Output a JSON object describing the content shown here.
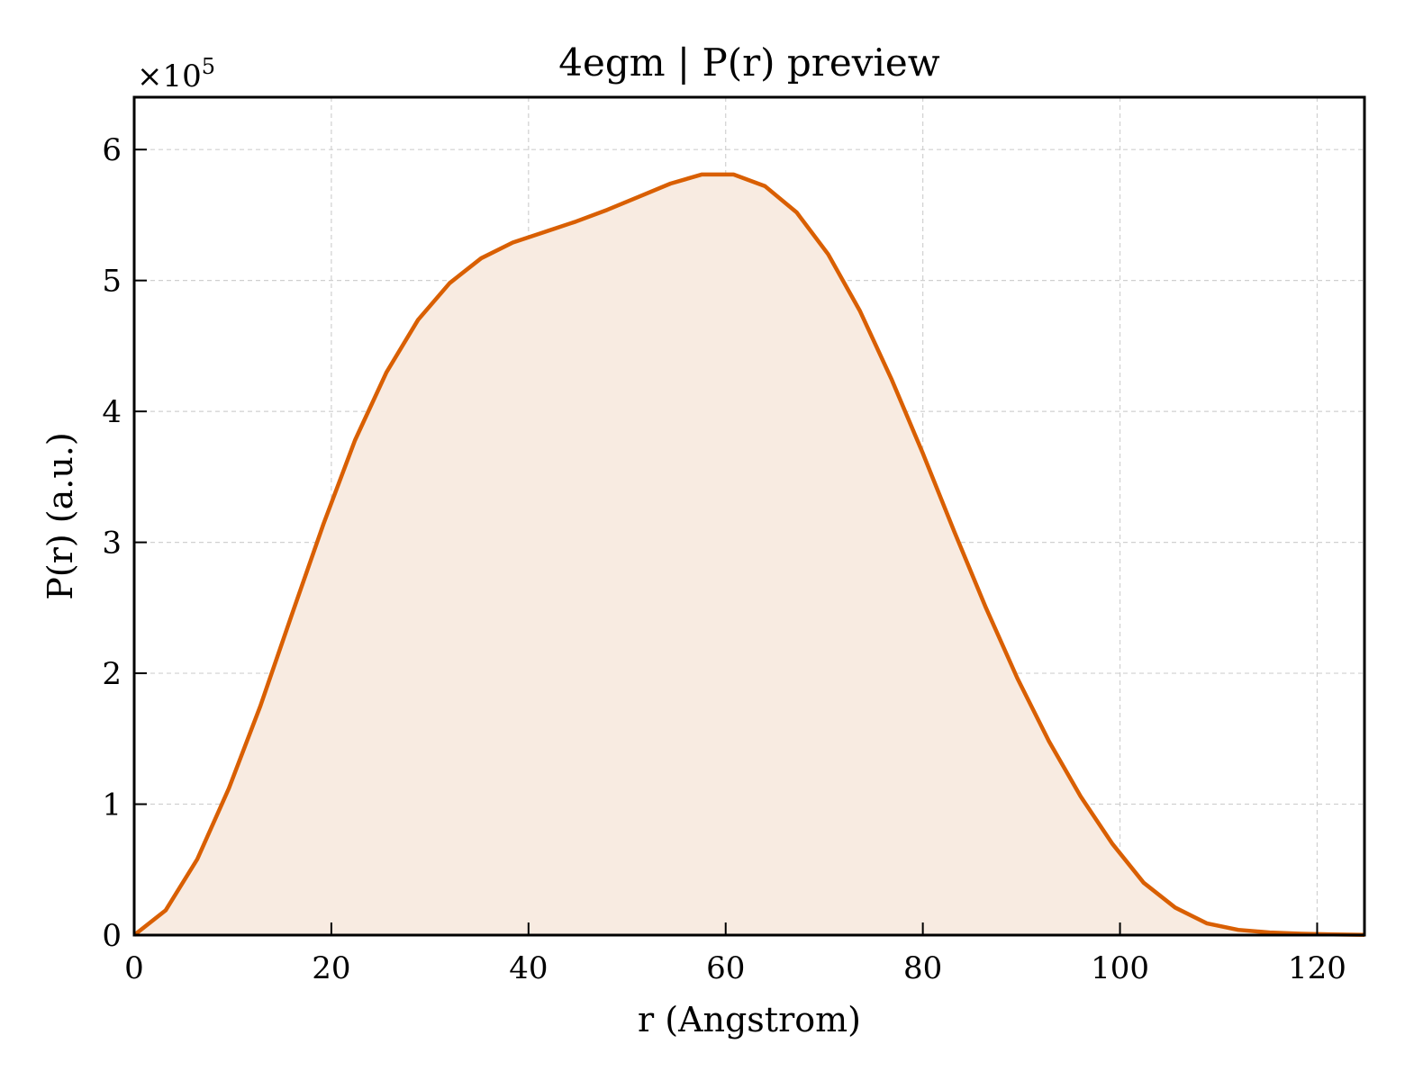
{
  "chart_data": {
    "type": "area",
    "title": "4egm | P(r) preview",
    "xlabel": "r (Angstrom)",
    "ylabel": "P(r) (a.u.)",
    "y_multiplier": "×10",
    "y_multiplier_exp": "5",
    "xlim": [
      0,
      124.8
    ],
    "ylim": [
      0,
      6.4
    ],
    "xticks": [
      0,
      20,
      40,
      60,
      80,
      100,
      120
    ],
    "yticks": [
      0,
      1,
      2,
      3,
      4,
      5,
      6
    ],
    "grid": true,
    "line_color": "#d95f02",
    "fill_color": "#f8ebe1",
    "series": [
      {
        "x": [
          0,
          3.2,
          6.4,
          9.6,
          12.8,
          16.0,
          19.2,
          22.4,
          25.6,
          28.8,
          32.0,
          35.2,
          38.4,
          41.6,
          44.8,
          48.0,
          51.2,
          54.4,
          57.6,
          60.8,
          64.0,
          67.2,
          70.4,
          73.6,
          76.8,
          80.0,
          83.2,
          86.4,
          89.6,
          92.8,
          96.0,
          99.2,
          102.4,
          105.6,
          108.8,
          112.0,
          115.2,
          118.4,
          121.6,
          124.8
        ],
        "y": [
          0.0,
          0.19,
          0.58,
          1.12,
          1.75,
          2.45,
          3.14,
          3.78,
          4.3,
          4.7,
          4.98,
          5.17,
          5.29,
          5.37,
          5.45,
          5.54,
          5.64,
          5.74,
          5.81,
          5.81,
          5.72,
          5.52,
          5.2,
          4.77,
          4.25,
          3.68,
          3.08,
          2.5,
          1.96,
          1.48,
          1.06,
          0.7,
          0.4,
          0.21,
          0.09,
          0.04,
          0.02,
          0.01,
          0.005,
          0.002
        ]
      }
    ]
  }
}
